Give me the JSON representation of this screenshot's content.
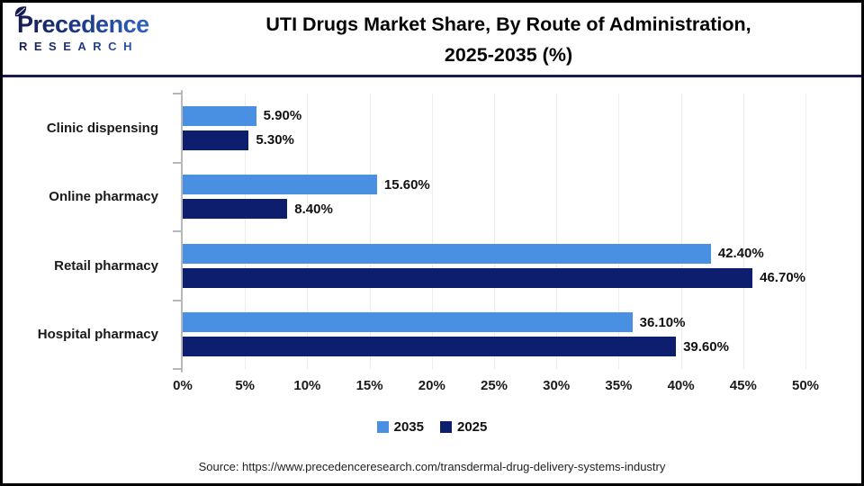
{
  "header": {
    "logo_line1": "Precedence",
    "logo_line2": "RESEARCH",
    "title_line1": "UTI Drugs Market Share, By Route of Administration,",
    "title_line2": "2025-2035 (%)"
  },
  "chart_data": {
    "type": "bar",
    "orientation": "horizontal",
    "title": "UTI Drugs Market Share, By Route of Administration, 2025-2035 (%)",
    "categories": [
      "Clinic dispensing",
      "Online pharmacy",
      "Retail pharmacy",
      "Hospital pharmacy"
    ],
    "series": [
      {
        "name": "2035",
        "color": "#4a90e2",
        "values": [
          5.9,
          15.6,
          42.4,
          36.1
        ],
        "labels": [
          "5.90%",
          "15.60%",
          "42.40%",
          "36.10%"
        ]
      },
      {
        "name": "2025",
        "color": "#0d1e6e",
        "values": [
          5.3,
          8.4,
          46.7,
          39.6
        ],
        "labels": [
          "5.30%",
          "8.40%",
          "46.70%",
          "39.60%"
        ]
      }
    ],
    "x_axis": {
      "min": 0,
      "max": 50,
      "tick_step": 5,
      "tick_labels": [
        "0%",
        "5%",
        "10%",
        "15%",
        "20%",
        "25%",
        "30%",
        "35%",
        "40%",
        "45%",
        "50%"
      ]
    },
    "grid": true,
    "legend_position": "bottom"
  },
  "legend": [
    {
      "label": "2035",
      "color": "#4a90e2"
    },
    {
      "label": "2025",
      "color": "#0d1e6e"
    }
  ],
  "source": "Source: https://www.precedenceresearch.com/transdermal-drug-delivery-systems-industry",
  "colors": {
    "series_2035": "#4a90e2",
    "series_2025": "#0d1e6e",
    "header_divider": "#171c55",
    "axis": "#b8b8b8",
    "gridline": "#ececec",
    "page_border": "#000000"
  }
}
